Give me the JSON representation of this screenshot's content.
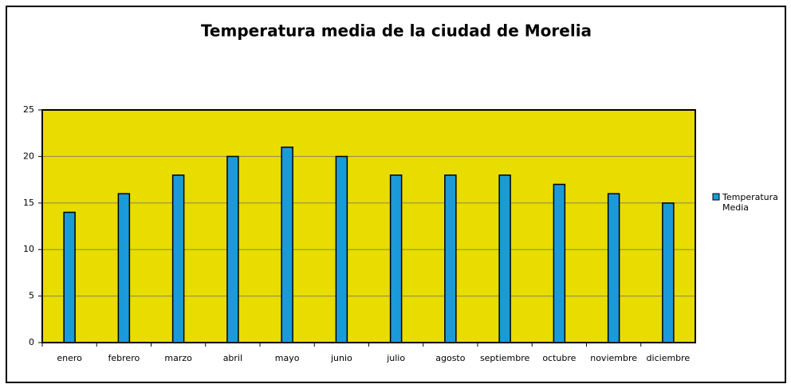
{
  "chart_data": {
    "type": "bar",
    "title": "Temperatura media de la ciudad de Morelia",
    "categories": [
      "enero",
      "febrero",
      "marzo",
      "abril",
      "mayo",
      "junio",
      "julio",
      "agosto",
      "septiembre",
      "octubre",
      "noviembre",
      "diciembre"
    ],
    "series": [
      {
        "name": "Temperatura Media",
        "color": "#1a9bd7",
        "values": [
          14,
          16,
          18,
          20,
          21,
          20,
          18,
          18,
          18,
          17,
          16,
          15
        ]
      }
    ],
    "ylim": [
      0,
      25
    ],
    "yticks": [
      0,
      5,
      10,
      15,
      20,
      25
    ],
    "grid": true,
    "legend": "right",
    "plot_background": "#e8dc00"
  }
}
